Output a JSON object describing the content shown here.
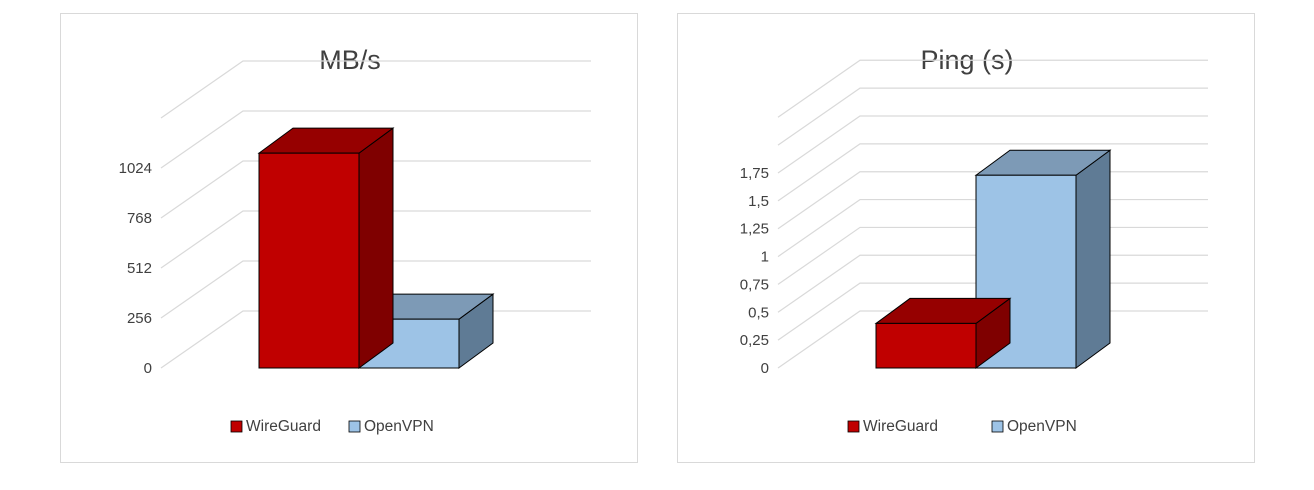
{
  "chart_data": [
    {
      "type": "bar",
      "title": "MB/s",
      "categories": [
        ""
      ],
      "series": [
        {
          "name": "WireGuard",
          "values": [
            1100
          ]
        },
        {
          "name": "OpenVPN",
          "values": [
            250
          ]
        }
      ],
      "ylim": [
        0,
        1280
      ],
      "yticks": [
        "0",
        "256",
        "512",
        "768",
        "1024"
      ],
      "grid": true,
      "legend_position": "bottom"
    },
    {
      "type": "bar",
      "title": "Ping (s)",
      "categories": [
        ""
      ],
      "series": [
        {
          "name": "WireGuard",
          "values": [
            0.4
          ]
        },
        {
          "name": "OpenVPN",
          "values": [
            1.73
          ]
        }
      ],
      "ylim": [
        0,
        2.25
      ],
      "yticks": [
        "0",
        "0,25",
        "0,5",
        "0,75",
        "1",
        "1,25",
        "1,5",
        "1,75"
      ],
      "grid": true,
      "legend_position": "bottom"
    }
  ],
  "colors": {
    "wireguard_front": "#c00000",
    "wireguard_side": "#7f0000",
    "wireguard_top": "#960000",
    "openvpn_front": "#9dc3e6",
    "openvpn_side": "#5f7b95",
    "openvpn_top": "#7d9ab6",
    "grid": "#d9d9d9",
    "text": "#404040"
  }
}
